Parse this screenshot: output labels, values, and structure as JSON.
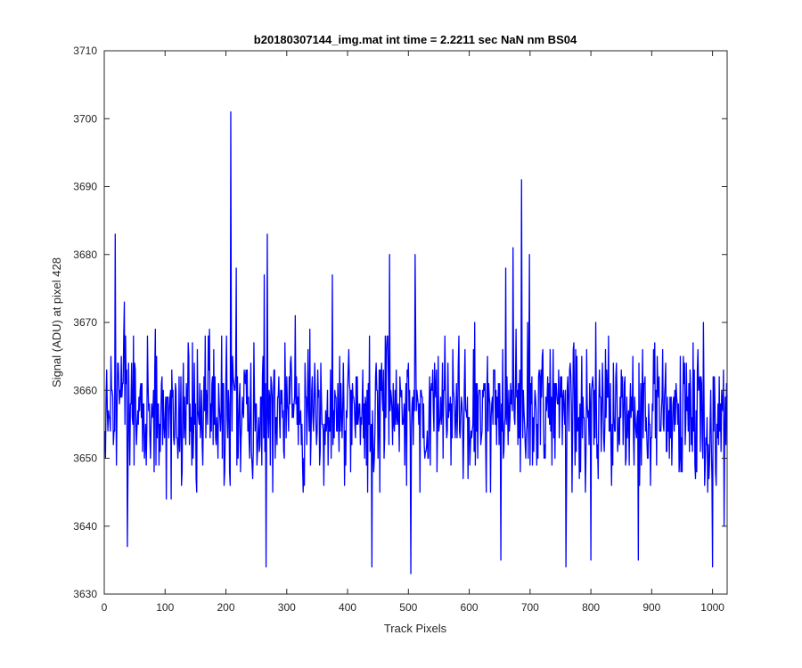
{
  "chart_data": {
    "type": "line",
    "title": "b20180307144_img.mat int time = 2.2211 sec  NaN nm BS04",
    "xlabel": "Track Pixels",
    "ylabel": "Signal (ADU) at pixel 428",
    "xlim": [
      0,
      1024
    ],
    "ylim": [
      3630,
      3710
    ],
    "xticks": [
      "0",
      "100",
      "200",
      "300",
      "400",
      "500",
      "600",
      "700",
      "800",
      "900",
      "1000"
    ],
    "yticks": [
      "3630",
      "3640",
      "3650",
      "3660",
      "3670",
      "3680",
      "3690",
      "3700",
      "3710"
    ],
    "grid": false,
    "legend": "none",
    "series": [
      {
        "color": "#0000ff",
        "n_points": 1024,
        "baseline": 3657,
        "noise_amplitude": 7,
        "peaks": [
          {
            "x": 18,
            "y": 3683
          },
          {
            "x": 33,
            "y": 3673
          },
          {
            "x": 38,
            "y": 3637
          },
          {
            "x": 208,
            "y": 3701
          },
          {
            "x": 217,
            "y": 3678
          },
          {
            "x": 263,
            "y": 3677
          },
          {
            "x": 266,
            "y": 3634
          },
          {
            "x": 268,
            "y": 3683
          },
          {
            "x": 375,
            "y": 3677
          },
          {
            "x": 440,
            "y": 3634
          },
          {
            "x": 469,
            "y": 3680
          },
          {
            "x": 504,
            "y": 3633
          },
          {
            "x": 511,
            "y": 3680
          },
          {
            "x": 652,
            "y": 3635
          },
          {
            "x": 660,
            "y": 3678
          },
          {
            "x": 672,
            "y": 3681
          },
          {
            "x": 686,
            "y": 3691
          },
          {
            "x": 699,
            "y": 3680
          },
          {
            "x": 759,
            "y": 3634
          },
          {
            "x": 800,
            "y": 3635
          },
          {
            "x": 878,
            "y": 3635
          },
          {
            "x": 1000,
            "y": 3634
          },
          {
            "x": 1019,
            "y": 3640
          }
        ]
      }
    ]
  }
}
